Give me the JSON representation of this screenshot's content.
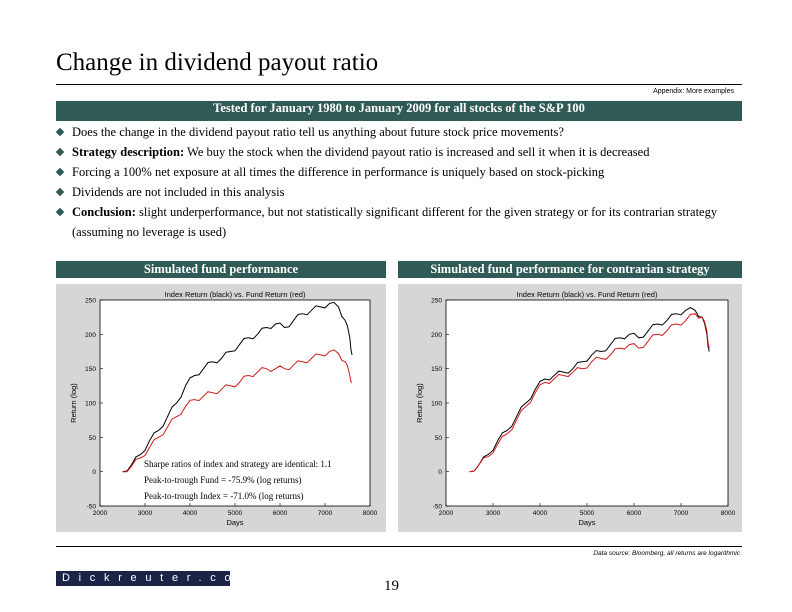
{
  "header": {
    "title": "Change in dividend payout ratio",
    "appendix": "Appendix: More examples"
  },
  "banner": "Tested for January 1980 to January 2009 for all stocks of the S&P  100",
  "bullets": [
    {
      "label": "",
      "text": "Does the change in the dividend payout ratio tell us anything about future stock price movements?"
    },
    {
      "label": "Strategy description:",
      "text": " We buy the stock when the dividend payout ratio is increased and sell it when it is decreased"
    },
    {
      "label": "",
      "text": "Forcing a 100% net exposure at all times the difference in performance is uniquely based on stock-picking"
    },
    {
      "label": "",
      "text": "Dividends are not included in this analysis"
    },
    {
      "label": "Conclusion:",
      "text": " slight underperformance, but not statistically significant different for the given strategy or for its contrarian strategy (assuming no leverage is used)"
    }
  ],
  "sections": {
    "left": "Simulated fund performance",
    "right": "Simulated fund performance for contrarian strategy"
  },
  "annotation": {
    "line1": "Sharpe ratios of index and strategy are identical: 1.1",
    "line2": "Peak-to-trough Fund = -75.9% (log returns)",
    "line3": "Peak-to-trough Index = -71.0% (log returns)"
  },
  "footer": {
    "source": "Data source: Bloomberg, all returns are logarithmic",
    "logo": "Dickreuter.com",
    "page": "19"
  },
  "colors": {
    "index": "#000000",
    "fund": "#d11a1a",
    "accent": "#2f5a55"
  },
  "chart_data": [
    {
      "type": "line",
      "title": "Index Return (black) vs. Fund Return (red)",
      "xlabel": "Days",
      "ylabel": "Return (log)",
      "xlim": [
        2000,
        8000
      ],
      "ylim": [
        -50,
        250
      ],
      "xticks": [
        "2000",
        "3000",
        "4000",
        "5000",
        "6000",
        "7000",
        "8000"
      ],
      "yticks": [
        "-50",
        "0",
        "50",
        "100",
        "150",
        "200",
        "250"
      ],
      "series": [
        {
          "name": "Index",
          "x": [
            2500,
            2700,
            2900,
            3100,
            3300,
            3500,
            3700,
            3900,
            4100,
            4300,
            4500,
            4700,
            4900,
            5100,
            5300,
            5500,
            5700,
            5900,
            6100,
            6300,
            6500,
            6700,
            6900,
            7100,
            7300,
            7450,
            7550,
            7600
          ],
          "y": [
            0,
            10,
            25,
            45,
            60,
            80,
            100,
            125,
            140,
            150,
            160,
            165,
            175,
            185,
            195,
            200,
            210,
            215,
            210,
            220,
            230,
            235,
            240,
            245,
            240,
            220,
            195,
            170
          ]
        },
        {
          "name": "Fund",
          "x": [
            2500,
            2700,
            2900,
            3100,
            3300,
            3500,
            3700,
            3900,
            4100,
            4300,
            4500,
            4700,
            4900,
            5100,
            5300,
            5500,
            5700,
            5900,
            6100,
            6300,
            6500,
            6700,
            6900,
            7100,
            7300,
            7450,
            7550,
            7600
          ],
          "y": [
            0,
            8,
            20,
            35,
            50,
            65,
            80,
            95,
            105,
            110,
            115,
            120,
            125,
            130,
            140,
            145,
            150,
            150,
            150,
            155,
            160,
            165,
            170,
            175,
            172,
            160,
            140,
            130
          ]
        }
      ]
    },
    {
      "type": "line",
      "title": "Index Return (black) vs. Fund Return (red)",
      "xlabel": "Days",
      "ylabel": "Return (log)",
      "xlim": [
        2000,
        8000
      ],
      "ylim": [
        -50,
        250
      ],
      "xticks": [
        "2000",
        "3000",
        "4000",
        "5000",
        "6000",
        "7000",
        "8000"
      ],
      "yticks": [
        "-50",
        "0",
        "50",
        "100",
        "150",
        "200",
        "250"
      ],
      "series": [
        {
          "name": "Index",
          "x": [
            2500,
            2700,
            2900,
            3100,
            3300,
            3500,
            3700,
            3900,
            4100,
            4300,
            4500,
            4700,
            4900,
            5100,
            5300,
            5500,
            5700,
            5900,
            6100,
            6300,
            6500,
            6700,
            6900,
            7100,
            7300,
            7450,
            7550,
            7600
          ],
          "y": [
            0,
            10,
            25,
            45,
            60,
            80,
            100,
            120,
            135,
            140,
            145,
            150,
            160,
            170,
            175,
            185,
            195,
            200,
            195,
            205,
            215,
            220,
            230,
            235,
            235,
            225,
            200,
            175
          ]
        },
        {
          "name": "Fund",
          "x": [
            2500,
            2700,
            2900,
            3100,
            3300,
            3500,
            3700,
            3900,
            4100,
            4300,
            4500,
            4700,
            4900,
            5100,
            5300,
            5500,
            5700,
            5900,
            6100,
            6300,
            6500,
            6700,
            6900,
            7100,
            7300,
            7450,
            7550,
            7600
          ],
          "y": [
            0,
            10,
            22,
            40,
            55,
            75,
            95,
            115,
            130,
            135,
            140,
            145,
            150,
            160,
            165,
            170,
            180,
            185,
            180,
            190,
            200,
            205,
            215,
            220,
            230,
            225,
            205,
            180
          ]
        }
      ]
    }
  ]
}
